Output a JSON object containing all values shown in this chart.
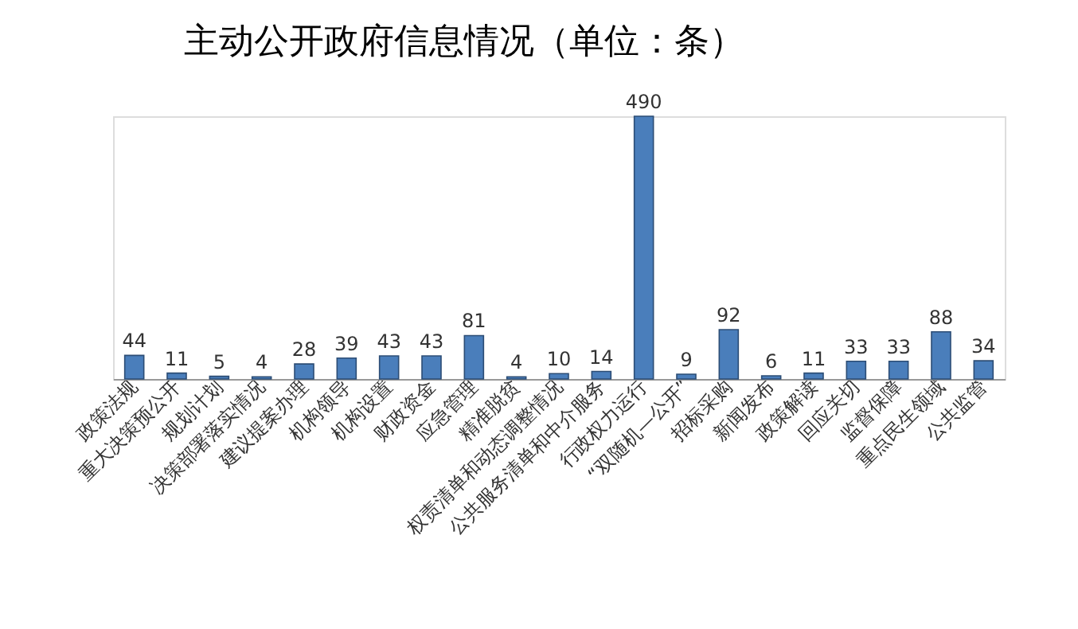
{
  "chart_data": {
    "type": "bar",
    "title": "主动公开政府信息情况（单位：条）",
    "categories": [
      "政策法规",
      "重大决策预公开",
      "规划计划",
      "决策部署落实情况",
      "建议提案办理",
      "机构领导",
      "机构设置",
      "财政资金",
      "应急管理",
      "精准脱贫",
      "权责清单和动态调整情况",
      "公共服务清单和中介服务",
      "行政权力运行",
      "“双随机—公开”",
      "招标采购",
      "新闻发布",
      "政策解读",
      "回应关切",
      "监督保障",
      "重点民生领域",
      "公共监管"
    ],
    "values": [
      44,
      11,
      5,
      4,
      28,
      39,
      43,
      43,
      81,
      4,
      10,
      14,
      490,
      9,
      92,
      6,
      11,
      33,
      33,
      88,
      34
    ],
    "color": "#4a7ebb",
    "data_labels": true,
    "grid": false
  }
}
